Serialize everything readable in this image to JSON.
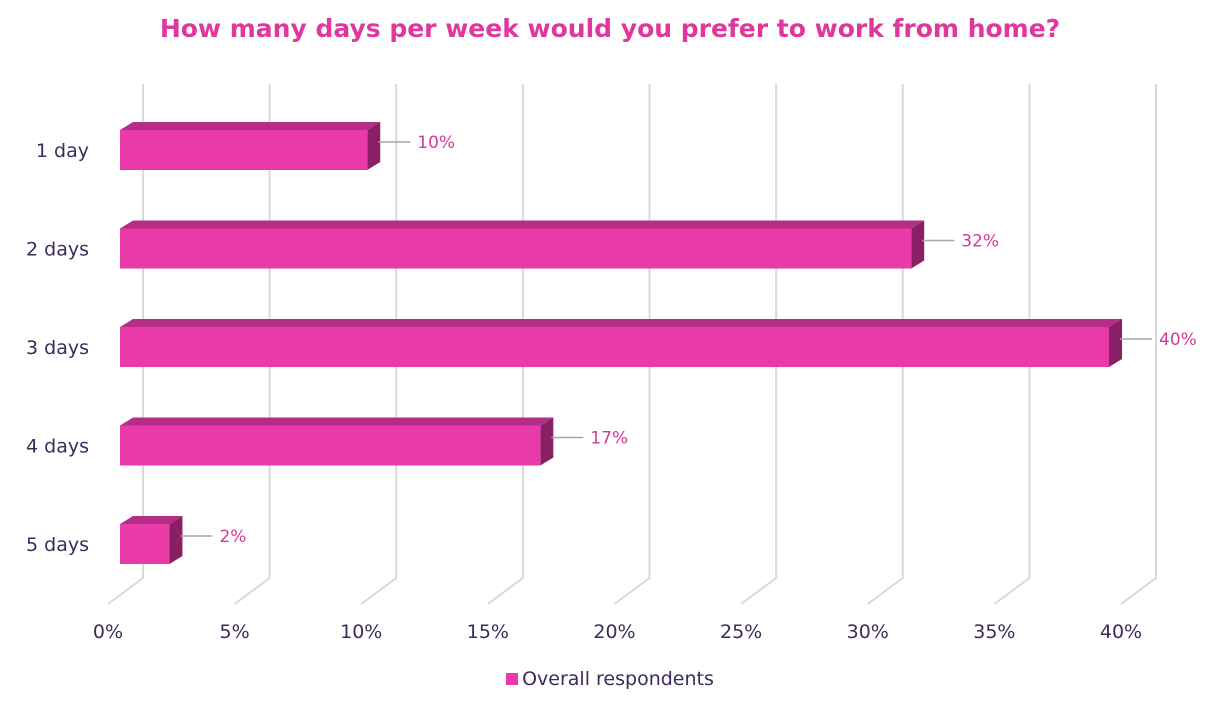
{
  "colors": {
    "title": "#e0379e",
    "bar_front": "#e83aa8",
    "bar_top": "#b42d86",
    "bar_side": "#8a2064",
    "label": "#d43a9a",
    "axis_text": "#3d2a5c",
    "grid": "#d9d9d9",
    "leader": "#a6a6a6"
  },
  "chart_data": {
    "type": "bar",
    "orientation": "horizontal",
    "title": "How many days per week would you prefer to work from home?",
    "categories": [
      "1 day",
      "2 days",
      "3 days",
      "4 days",
      "5 days"
    ],
    "series": [
      {
        "name": "Overall respondents",
        "values": [
          10,
          32,
          40,
          17,
          2
        ]
      }
    ],
    "data_labels": [
      "10%",
      "32%",
      "40%",
      "17%",
      "2%"
    ],
    "x_ticks": [
      "0%",
      "5%",
      "10%",
      "15%",
      "20%",
      "25%",
      "30%",
      "35%",
      "40%"
    ],
    "xlim": [
      0,
      40
    ],
    "grid": true,
    "style": "3d",
    "legend_position": "bottom"
  }
}
